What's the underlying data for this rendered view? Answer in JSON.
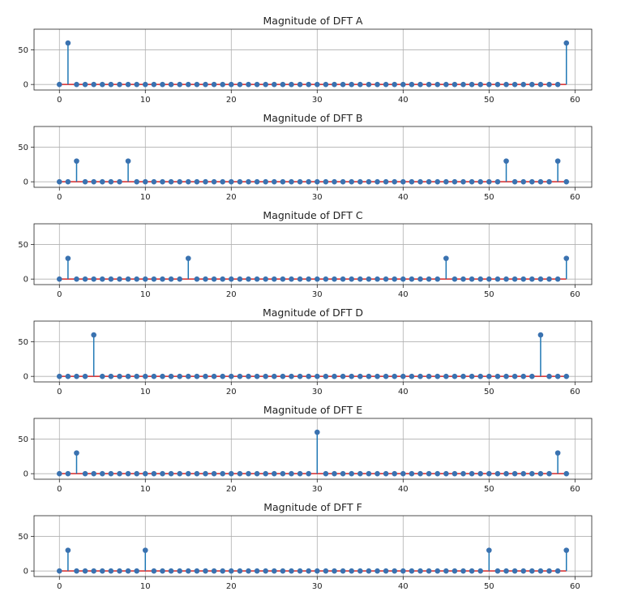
{
  "figure": {
    "background": "#ffffff",
    "stem_color": "#1f77b4",
    "marker_color": "#3a72b0",
    "baseline_color": "#d62728",
    "grid_color": "#b0b0b0"
  },
  "chart_data": [
    {
      "type": "stem",
      "title": "Magnitude of DFT A",
      "xlabel": "",
      "ylabel": "",
      "xlim": [
        -2.95,
        61.95
      ],
      "ylim": [
        -8,
        80
      ],
      "xticks": [
        0,
        10,
        20,
        30,
        40,
        50,
        60
      ],
      "yticks": [
        0,
        50
      ],
      "grid": true,
      "n": 60,
      "nonzero": [
        {
          "x": 1,
          "y": 60
        },
        {
          "x": 59,
          "y": 60
        }
      ]
    },
    {
      "type": "stem",
      "title": "Magnitude of DFT B",
      "xlabel": "",
      "ylabel": "",
      "xlim": [
        -2.95,
        61.95
      ],
      "ylim": [
        -8,
        80
      ],
      "xticks": [
        0,
        10,
        20,
        30,
        40,
        50,
        60
      ],
      "yticks": [
        0,
        50
      ],
      "grid": true,
      "n": 60,
      "nonzero": [
        {
          "x": 2,
          "y": 30
        },
        {
          "x": 8,
          "y": 30
        },
        {
          "x": 52,
          "y": 30
        },
        {
          "x": 58,
          "y": 30
        }
      ]
    },
    {
      "type": "stem",
      "title": "Magnitude of DFT C",
      "xlabel": "",
      "ylabel": "",
      "xlim": [
        -2.95,
        61.95
      ],
      "ylim": [
        -8,
        80
      ],
      "xticks": [
        0,
        10,
        20,
        30,
        40,
        50,
        60
      ],
      "yticks": [
        0,
        50
      ],
      "grid": true,
      "n": 60,
      "nonzero": [
        {
          "x": 1,
          "y": 30
        },
        {
          "x": 15,
          "y": 30
        },
        {
          "x": 45,
          "y": 30
        },
        {
          "x": 59,
          "y": 30
        }
      ]
    },
    {
      "type": "stem",
      "title": "Magnitude of DFT D",
      "xlabel": "",
      "ylabel": "",
      "xlim": [
        -2.95,
        61.95
      ],
      "ylim": [
        -8,
        80
      ],
      "xticks": [
        0,
        10,
        20,
        30,
        40,
        50,
        60
      ],
      "yticks": [
        0,
        50
      ],
      "grid": true,
      "n": 60,
      "nonzero": [
        {
          "x": 4,
          "y": 60
        },
        {
          "x": 56,
          "y": 60
        }
      ]
    },
    {
      "type": "stem",
      "title": "Magnitude of DFT E",
      "xlabel": "",
      "ylabel": "",
      "xlim": [
        -2.95,
        61.95
      ],
      "ylim": [
        -8,
        80
      ],
      "xticks": [
        0,
        10,
        20,
        30,
        40,
        50,
        60
      ],
      "yticks": [
        0,
        50
      ],
      "grid": true,
      "n": 60,
      "nonzero": [
        {
          "x": 2,
          "y": 30
        },
        {
          "x": 30,
          "y": 60
        },
        {
          "x": 58,
          "y": 30
        }
      ]
    },
    {
      "type": "stem",
      "title": "Magnitude of DFT F",
      "xlabel": "",
      "ylabel": "",
      "xlim": [
        -2.95,
        61.95
      ],
      "ylim": [
        -8,
        80
      ],
      "xticks": [
        0,
        10,
        20,
        30,
        40,
        50,
        60
      ],
      "yticks": [
        0,
        50
      ],
      "grid": true,
      "n": 60,
      "nonzero": [
        {
          "x": 1,
          "y": 30
        },
        {
          "x": 10,
          "y": 30
        },
        {
          "x": 50,
          "y": 30
        },
        {
          "x": 59,
          "y": 30
        }
      ]
    }
  ]
}
